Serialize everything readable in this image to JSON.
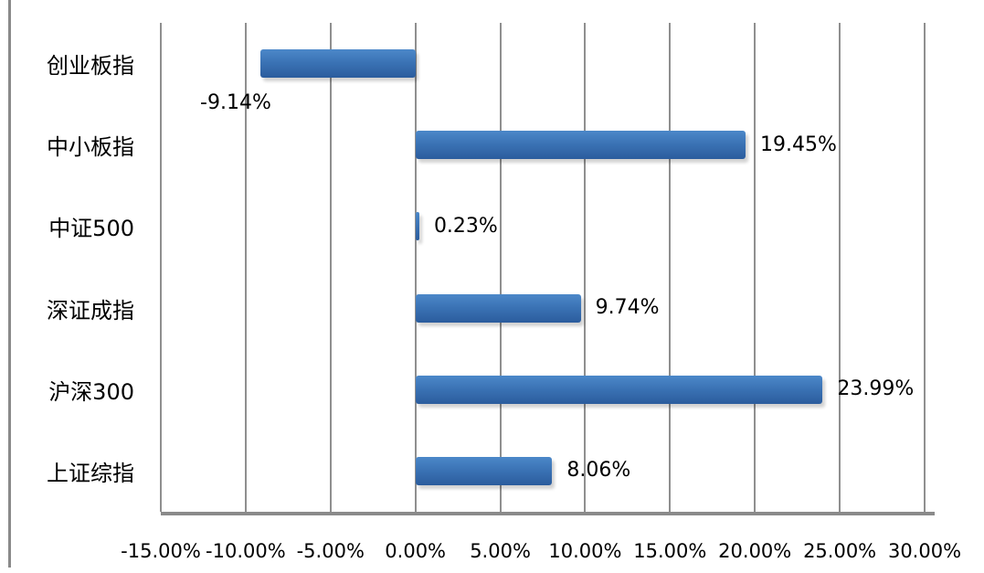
{
  "chart_data": {
    "type": "bar",
    "orientation": "horizontal",
    "title": "",
    "categories": [
      "创业板指",
      "中小板指",
      "中证500",
      "深证成指",
      "沪深300",
      "上证综指"
    ],
    "values": [
      -9.14,
      19.45,
      0.23,
      9.74,
      23.99,
      8.06
    ],
    "value_labels": [
      "-9.14%",
      "19.45%",
      "0.23%",
      "9.74%",
      "23.99%",
      "8.06%"
    ],
    "xlim": [
      -15,
      30
    ],
    "x_tick_values": [
      -15,
      -10,
      -5,
      0,
      5,
      10,
      15,
      20,
      25,
      30
    ],
    "x_tick_labels": [
      "-15.00%",
      "-10.00%",
      "-5.00%",
      "0.00%",
      "5.00%",
      "10.00%",
      "15.00%",
      "20.00%",
      "25.00%",
      "30.00%"
    ],
    "grid": "vertical-only",
    "legend": "none",
    "colors": {
      "bar_gradient_top": "#4c88c9",
      "bar_gradient_bottom": "#2b5c9d",
      "gridline": "#8f8f8f",
      "axis_line": "#8a8a8a",
      "text": "#000000",
      "background": "#ffffff"
    }
  }
}
